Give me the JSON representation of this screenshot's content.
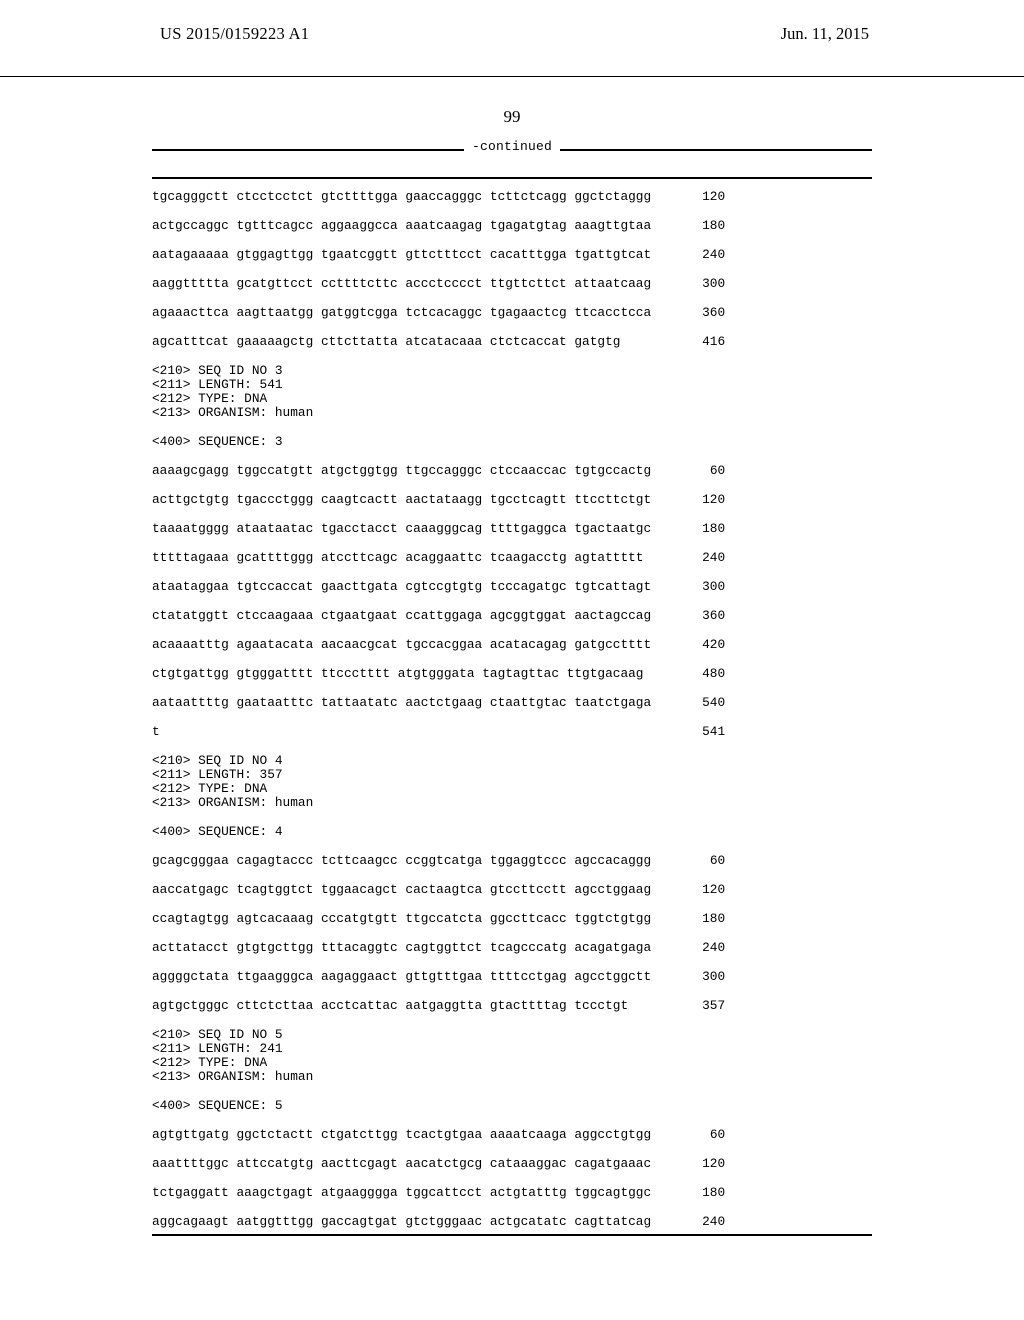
{
  "header": {
    "publication_number": "US 2015/0159223 A1",
    "publication_date": "Jun. 11, 2015"
  },
  "page_number": "99",
  "continued_label": "-continued",
  "blocks": [
    {
      "type": "seq_lines",
      "lines": [
        {
          "seq": "tgcagggctt ctcctcctct gtcttttgga gaaccagggc tcttctcagg ggctctaggg",
          "pos": "120"
        },
        {
          "seq": "actgccaggc tgtttcagcc aggaaggcca aaatcaagag tgagatgtag aaagttgtaa",
          "pos": "180"
        },
        {
          "seq": "aatagaaaaa gtggagttgg tgaatcggtt gttctttcct cacatttgga tgattgtcat",
          "pos": "240"
        },
        {
          "seq": "aaggttttta gcatgttcct ccttttcttc accctcccct ttgttcttct attaatcaag",
          "pos": "300"
        },
        {
          "seq": "agaaacttca aagttaatgg gatggtcgga tctcacaggc tgagaactcg ttcacctcca",
          "pos": "360"
        },
        {
          "seq": "agcatttcat gaaaaagctg cttcttatta atcatacaaa ctctcaccat gatgtg",
          "pos": "416"
        }
      ]
    },
    {
      "type": "meta",
      "lines": [
        "<210> SEQ ID NO 3",
        "<211> LENGTH: 541",
        "<212> TYPE: DNA",
        "<213> ORGANISM: human"
      ]
    },
    {
      "type": "meta",
      "lines": [
        "<400> SEQUENCE: 3"
      ]
    },
    {
      "type": "seq_lines",
      "lines": [
        {
          "seq": "aaaagcgagg tggccatgtt atgctggtgg ttgccagggc ctccaaccac tgtgccactg",
          "pos": "60"
        },
        {
          "seq": "acttgctgtg tgaccctggg caagtcactt aactataagg tgcctcagtt ttccttctgt",
          "pos": "120"
        },
        {
          "seq": "taaaatgggg ataataatac tgacctacct caaagggcag ttttgaggca tgactaatgc",
          "pos": "180"
        },
        {
          "seq": "tttttagaaa gcattttggg atccttcagc acaggaattc tcaagacctg agtattttt",
          "pos": "240"
        },
        {
          "seq": "ataataggaa tgtccaccat gaacttgata cgtccgtgtg tcccagatgc tgtcattagt",
          "pos": "300"
        },
        {
          "seq": "ctatatggtt ctccaagaaa ctgaatgaat ccattggaga agcggtggat aactagccag",
          "pos": "360"
        },
        {
          "seq": "acaaaatttg agaatacata aacaacgcat tgccacggaa acatacagag gatgcctttt",
          "pos": "420"
        },
        {
          "seq": "ctgtgattgg gtgggatttt ttccctttt atgtgggata tagtagttac ttgtgacaag",
          "pos": "480"
        },
        {
          "seq": "aataattttg gaataatttc tattaatatc aactctgaag ctaattgtac taatctgaga",
          "pos": "540"
        },
        {
          "seq": "t",
          "pos": "541"
        }
      ]
    },
    {
      "type": "meta",
      "lines": [
        "<210> SEQ ID NO 4",
        "<211> LENGTH: 357",
        "<212> TYPE: DNA",
        "<213> ORGANISM: human"
      ]
    },
    {
      "type": "meta",
      "lines": [
        "<400> SEQUENCE: 4"
      ]
    },
    {
      "type": "seq_lines",
      "lines": [
        {
          "seq": "gcagcgggaa cagagtaccc tcttcaagcc ccggtcatga tggaggtccc agccacaggg",
          "pos": "60"
        },
        {
          "seq": "aaccatgagc tcagtggtct tggaacagct cactaagtca gtccttcctt agcctggaag",
          "pos": "120"
        },
        {
          "seq": "ccagtagtgg agtcacaaag cccatgtgtt ttgccatcta ggccttcacc tggtctgtgg",
          "pos": "180"
        },
        {
          "seq": "acttatacct gtgtgcttgg tttacaggtc cagtggttct tcagcccatg acagatgaga",
          "pos": "240"
        },
        {
          "seq": "aggggctata ttgaagggca aagaggaact gttgtttgaa ttttcctgag agcctggctt",
          "pos": "300"
        },
        {
          "seq": "agtgctgggc cttctcttaa acctcattac aatgaggtta gtacttttag tccctgt",
          "pos": "357"
        }
      ]
    },
    {
      "type": "meta",
      "lines": [
        "<210> SEQ ID NO 5",
        "<211> LENGTH: 241",
        "<212> TYPE: DNA",
        "<213> ORGANISM: human"
      ]
    },
    {
      "type": "meta",
      "lines": [
        "<400> SEQUENCE: 5"
      ]
    },
    {
      "type": "seq_lines",
      "lines": [
        {
          "seq": "agtgttgatg ggctctactt ctgatcttgg tcactgtgaa aaaatcaaga aggcctgtgg",
          "pos": "60"
        },
        {
          "seq": "aaattttggc attccatgtg aacttcgagt aacatctgcg cataaaggac cagatgaaac",
          "pos": "120"
        },
        {
          "seq": "tctgaggatt aaagctgagt atgaagggga tggcattcct actgtatttg tggcagtggc",
          "pos": "180"
        },
        {
          "seq": "aggcagaagt aatggtttgg gaccagtgat gtctgggaac actgcatatc cagttatcag",
          "pos": "240"
        }
      ]
    }
  ]
}
